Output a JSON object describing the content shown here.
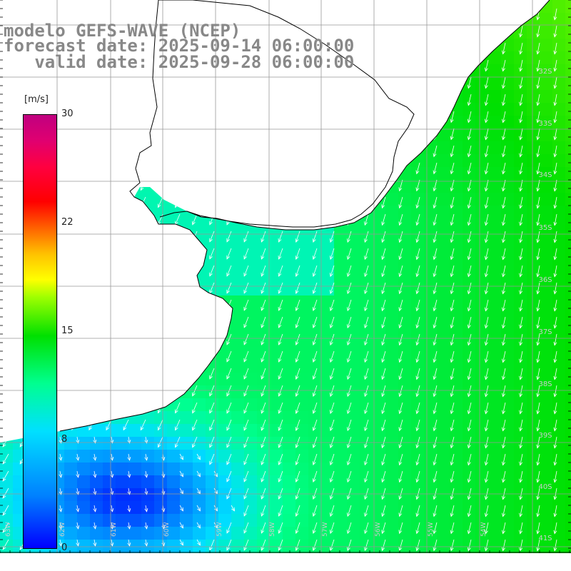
{
  "title": {
    "line1": "modelo GEFS-WAVE (NCEP)",
    "line2": "forecast date: 2025-09-14 06:00:00",
    "line3": "   valid date: 2025-09-28 06:00:00"
  },
  "colorbar": {
    "unit": "m/s",
    "ticks": [
      "30",
      "22",
      "15",
      "8",
      "0"
    ],
    "tick_values": [
      30,
      22,
      15,
      8,
      0
    ],
    "range": [
      0,
      30
    ],
    "colors": [
      "#0000ff",
      "#0080ff",
      "#00e0ff",
      "#00ff90",
      "#00e000",
      "#a0ff00",
      "#ffff00",
      "#ff6000",
      "#ff0000",
      "#c00080"
    ]
  },
  "lat_labels": [
    "32S",
    "33S",
    "34S",
    "35S",
    "36S",
    "37S",
    "38S",
    "39S",
    "40S",
    "41S"
  ],
  "lon_labels": [
    "63W",
    "62W",
    "61W",
    "60W",
    "59W",
    "58W",
    "57W",
    "56W",
    "55W",
    "54W"
  ],
  "map": {
    "land_color": "#ffffff",
    "coastline_color": "#000000",
    "grid_color": "#999999",
    "arrow_color": "#ffffff",
    "field_description_colors": {
      "low": "#1060ff",
      "mid": "#22ff66",
      "high": "#c8ff30"
    }
  }
}
